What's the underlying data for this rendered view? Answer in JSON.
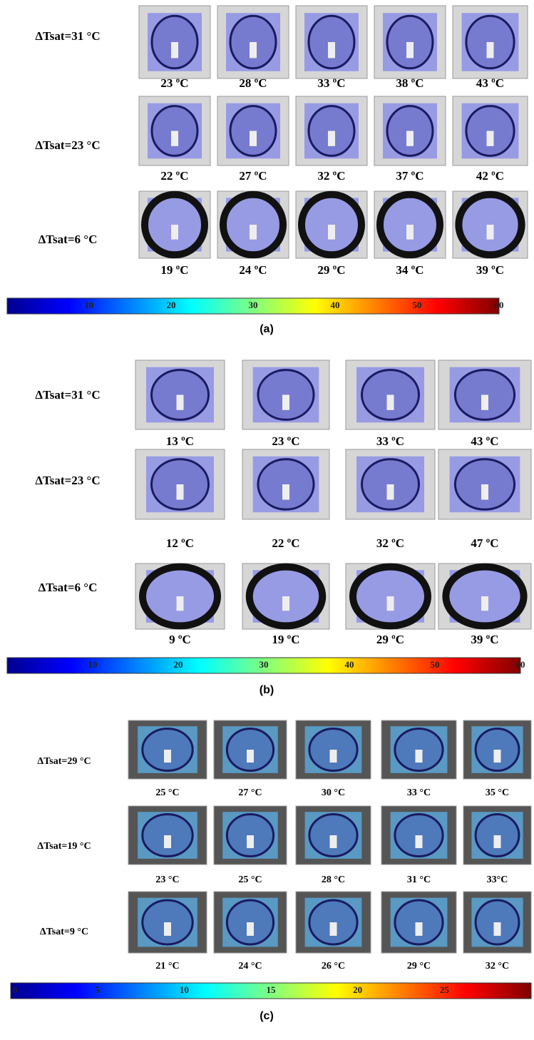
{
  "panels": [
    {
      "label": "(a)",
      "rows": [
        {
          "label": "ΔTsat=31 °C",
          "captions": [
            "23 ºC",
            "28 ºC",
            "33 ºC",
            "38 ºC",
            "43 ºC"
          ]
        },
        {
          "label": "ΔTsat=23 °C",
          "captions": [
            "22 ºC",
            "27 ºC",
            "32 ºC",
            "37 ºC",
            "42 ºC"
          ]
        },
        {
          "label": "ΔTsat=6 °C",
          "captions": [
            "19 ºC",
            "24 ºC",
            "29 ºC",
            "34 ºC",
            "39 ºC"
          ]
        }
      ],
      "colorbar": {
        "lim": [
          0,
          60
        ],
        "ticks": [
          10,
          20,
          30,
          40,
          50,
          60
        ]
      }
    },
    {
      "label": "(b)",
      "rows": [
        {
          "label": "ΔTsat=31 °C",
          "captions": [
            "13 ºC",
            "23 ºC",
            "33 ºC",
            "43 ºC"
          ]
        },
        {
          "label": "ΔTsat=23 °C",
          "captions": [
            "12 ºC",
            "22 ºC",
            "32 ºC",
            "47 ºC"
          ]
        },
        {
          "label": "ΔTsat=6 °C",
          "captions": [
            "9 ºC",
            "19 ºC",
            "29 ºC",
            "39 ºC"
          ]
        }
      ],
      "colorbar": {
        "lim": [
          0,
          60
        ],
        "ticks": [
          10,
          20,
          30,
          40,
          50,
          60
        ]
      }
    },
    {
      "label": "(c)",
      "rows": [
        {
          "label": "ΔTsat=29 °C",
          "captions": [
            "25 °C",
            "27 °C",
            "30 °C",
            "33 °C",
            "35 °C"
          ]
        },
        {
          "label": "ΔTsat=19 °C",
          "captions": [
            "23 °C",
            "25 °C",
            "28 °C",
            "31 °C",
            "33°C"
          ]
        },
        {
          "label": "ΔTsat=9 °C",
          "captions": [
            "21 °C",
            "24 °C",
            "26 °C",
            "29 °C",
            "32 °C"
          ]
        }
      ],
      "colorbar": {
        "lim": [
          0,
          30
        ],
        "ticks": [
          0,
          5,
          10,
          15,
          20,
          25
        ]
      }
    }
  ]
}
